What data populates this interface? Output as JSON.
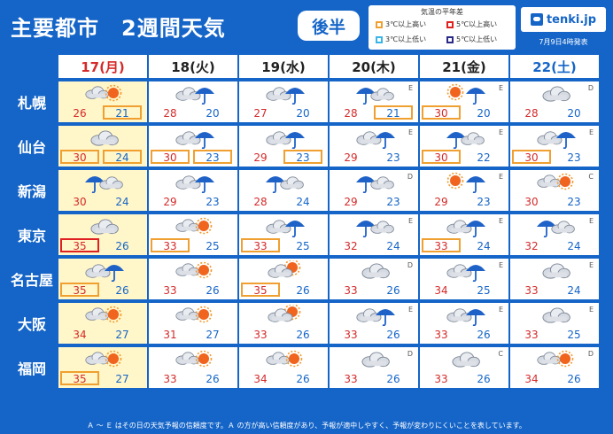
{
  "header": {
    "title": "主要都市　2週間天気",
    "period": "後半",
    "logo": "tenki.jp",
    "issued": "7月9日4時発表"
  },
  "legend": {
    "title": "気温の平年差",
    "items": [
      {
        "label": "3℃以上高い",
        "color": "#f0a030"
      },
      {
        "label": "5℃以上高い",
        "color": "#e02020"
      },
      {
        "label": "3℃以上低い",
        "color": "#39b6e8"
      },
      {
        "label": "5℃以上低い",
        "color": "#2a2a8a"
      }
    ]
  },
  "days": [
    {
      "label": "17(月)",
      "type": "sun"
    },
    {
      "label": "18(火)",
      "type": "week"
    },
    {
      "label": "19(水)",
      "type": "week"
    },
    {
      "label": "20(木)",
      "type": "week"
    },
    {
      "label": "21(金)",
      "type": "week"
    },
    {
      "label": "22(土)",
      "type": "sat"
    }
  ],
  "cities": [
    {
      "name": "札幌",
      "forecasts": [
        {
          "weather": "sunny-cloudy",
          "rel": "",
          "max": "26",
          "min": "21",
          "maxB": "",
          "minB": "hot3"
        },
        {
          "weather": "cloudy-rain",
          "rel": "",
          "max": "28",
          "min": "20",
          "maxB": "",
          "minB": ""
        },
        {
          "weather": "cloudy-rain",
          "rel": "",
          "max": "27",
          "min": "20",
          "maxB": "",
          "minB": ""
        },
        {
          "weather": "rain-cloudy",
          "rel": "E",
          "max": "28",
          "min": "21",
          "maxB": "",
          "minB": "hot3"
        },
        {
          "weather": "sunny-rain",
          "rel": "E",
          "max": "30",
          "min": "20",
          "maxB": "hot3",
          "minB": ""
        },
        {
          "weather": "cloudy",
          "rel": "D",
          "max": "28",
          "min": "20",
          "maxB": "",
          "minB": ""
        }
      ]
    },
    {
      "name": "仙台",
      "forecasts": [
        {
          "weather": "cloudy",
          "rel": "",
          "max": "30",
          "min": "24",
          "maxB": "hot3",
          "minB": "hot3"
        },
        {
          "weather": "cloudy-rain",
          "rel": "",
          "max": "30",
          "min": "23",
          "maxB": "hot3",
          "minB": "hot3"
        },
        {
          "weather": "cloudy-rain",
          "rel": "",
          "max": "29",
          "min": "23",
          "maxB": "",
          "minB": "hot3"
        },
        {
          "weather": "cloudy-rain",
          "rel": "E",
          "max": "29",
          "min": "23",
          "maxB": "",
          "minB": ""
        },
        {
          "weather": "rain-cloudy",
          "rel": "E",
          "max": "30",
          "min": "22",
          "maxB": "hot3",
          "minB": ""
        },
        {
          "weather": "cloudy-rain",
          "rel": "E",
          "max": "30",
          "min": "23",
          "maxB": "hot3",
          "minB": ""
        }
      ]
    },
    {
      "name": "新潟",
      "forecasts": [
        {
          "weather": "rain-cloudy",
          "rel": "",
          "max": "30",
          "min": "24",
          "maxB": "",
          "minB": ""
        },
        {
          "weather": "cloudy-rain",
          "rel": "",
          "max": "29",
          "min": "23",
          "maxB": "",
          "minB": ""
        },
        {
          "weather": "rain-cloudy",
          "rel": "",
          "max": "28",
          "min": "24",
          "maxB": "",
          "minB": ""
        },
        {
          "weather": "rain-cloudy",
          "rel": "D",
          "max": "29",
          "min": "23",
          "maxB": "",
          "minB": ""
        },
        {
          "weather": "sunny-rain",
          "rel": "E",
          "max": "29",
          "min": "23",
          "maxB": "",
          "minB": ""
        },
        {
          "weather": "sunny-cloudy",
          "rel": "C",
          "max": "30",
          "min": "23",
          "maxB": "",
          "minB": ""
        }
      ]
    },
    {
      "name": "東京",
      "forecasts": [
        {
          "weather": "cloudy",
          "rel": "",
          "max": "35",
          "min": "26",
          "maxB": "hot5",
          "minB": ""
        },
        {
          "weather": "sunny-cloudy",
          "rel": "",
          "max": "33",
          "min": "25",
          "maxB": "hot3",
          "minB": ""
        },
        {
          "weather": "cloudy-rain",
          "rel": "",
          "max": "33",
          "min": "25",
          "maxB": "hot3",
          "minB": ""
        },
        {
          "weather": "rain-cloudy",
          "rel": "E",
          "max": "32",
          "min": "24",
          "maxB": "",
          "minB": ""
        },
        {
          "weather": "cloudy-rain",
          "rel": "E",
          "max": "33",
          "min": "24",
          "maxB": "hot3",
          "minB": ""
        },
        {
          "weather": "rain-cloudy",
          "rel": "E",
          "max": "32",
          "min": "24",
          "maxB": "",
          "minB": ""
        }
      ]
    },
    {
      "name": "名古屋",
      "forecasts": [
        {
          "weather": "cloudy-rain",
          "rel": "",
          "max": "35",
          "min": "26",
          "maxB": "hot3",
          "minB": ""
        },
        {
          "weather": "sunny-cloudy",
          "rel": "",
          "max": "33",
          "min": "26",
          "maxB": "",
          "minB": ""
        },
        {
          "weather": "cloudy-sunny",
          "rel": "",
          "max": "35",
          "min": "26",
          "maxB": "hot3",
          "minB": ""
        },
        {
          "weather": "cloudy",
          "rel": "D",
          "max": "33",
          "min": "26",
          "maxB": "",
          "minB": ""
        },
        {
          "weather": "cloudy-rain",
          "rel": "E",
          "max": "34",
          "min": "25",
          "maxB": "",
          "minB": ""
        },
        {
          "weather": "cloudy",
          "rel": "E",
          "max": "33",
          "min": "24",
          "maxB": "",
          "minB": ""
        }
      ]
    },
    {
      "name": "大阪",
      "forecasts": [
        {
          "weather": "sunny-cloudy",
          "rel": "",
          "max": "34",
          "min": "27",
          "maxB": "",
          "minB": ""
        },
        {
          "weather": "sunny-cloudy",
          "rel": "",
          "max": "31",
          "min": "27",
          "maxB": "",
          "minB": ""
        },
        {
          "weather": "cloudy-sunny",
          "rel": "",
          "max": "33",
          "min": "26",
          "maxB": "",
          "minB": ""
        },
        {
          "weather": "cloudy-rain",
          "rel": "E",
          "max": "33",
          "min": "26",
          "maxB": "",
          "minB": ""
        },
        {
          "weather": "cloudy-rain",
          "rel": "E",
          "max": "33",
          "min": "26",
          "maxB": "",
          "minB": ""
        },
        {
          "weather": "cloudy",
          "rel": "E",
          "max": "33",
          "min": "25",
          "maxB": "",
          "minB": ""
        }
      ]
    },
    {
      "name": "福岡",
      "forecasts": [
        {
          "weather": "sunny-cloudy",
          "rel": "",
          "max": "35",
          "min": "27",
          "maxB": "hot3",
          "minB": ""
        },
        {
          "weather": "sunny-cloudy",
          "rel": "",
          "max": "33",
          "min": "26",
          "maxB": "",
          "minB": ""
        },
        {
          "weather": "sunny-cloudy",
          "rel": "",
          "max": "34",
          "min": "26",
          "maxB": "",
          "minB": ""
        },
        {
          "weather": "cloudy",
          "rel": "D",
          "max": "33",
          "min": "26",
          "maxB": "",
          "minB": ""
        },
        {
          "weather": "cloudy",
          "rel": "C",
          "max": "33",
          "min": "26",
          "maxB": "",
          "minB": ""
        },
        {
          "weather": "sunny-cloudy",
          "rel": "D",
          "max": "34",
          "min": "26",
          "maxB": "",
          "minB": ""
        }
      ]
    }
  ],
  "footer": "Ａ ～ Ｅ はその日の天気予報の信頼度です。Ａ の方が高い信頼度があり、予報が適中しやすく、予報が変わりにくいことを表しています。"
}
